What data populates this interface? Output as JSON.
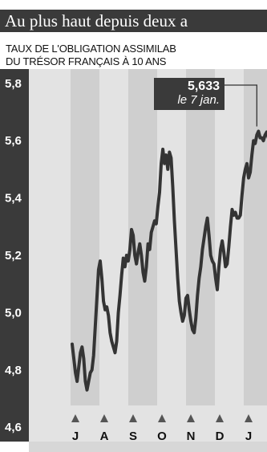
{
  "header": {
    "title": "Au plus haut depuis deux a",
    "subtitle_line1": "TAUX DE L'OBLIGATION ASSIMILAB",
    "subtitle_line2": "DU TRÉSOR FRANÇAIS À 10 ANS"
  },
  "annotation": {
    "value": "5,633",
    "date": "le 7 jan."
  },
  "colors": {
    "dark": "#3a3a3a",
    "light_band": "#e3e3e3",
    "dark_band": "#cfcfcf",
    "line": "#343434"
  },
  "chart_data": {
    "type": "line",
    "title": "Au plus haut depuis deux a",
    "subtitle": "TAUX DE L'OBLIGATION ASSIMILAB / DU TRÉSOR FRANÇAIS À 10 ANS",
    "xlabel": "",
    "ylabel": "",
    "ylim": [
      4.55,
      5.85
    ],
    "y_ticks": [
      "5,8",
      "5,6",
      "5,4",
      "5,2",
      "5,0",
      "4,8",
      "4,6"
    ],
    "y_tick_values": [
      5.8,
      5.6,
      5.4,
      5.2,
      5.0,
      4.8,
      4.6
    ],
    "x_ticks": [
      "J",
      "A",
      "S",
      "O",
      "N",
      "D",
      "J"
    ],
    "bands": [
      "J",
      "A",
      "S",
      "O",
      "N",
      "D",
      "J"
    ],
    "x": [
      0,
      2,
      4,
      6,
      8,
      10,
      12,
      14,
      16,
      18,
      20,
      22,
      24,
      26,
      28,
      30,
      32,
      34,
      36,
      38,
      40,
      42,
      44,
      46,
      48,
      50,
      52,
      54,
      56,
      58,
      60,
      62,
      64,
      66,
      68,
      70,
      72,
      74,
      76,
      78,
      80,
      82,
      84,
      86,
      88,
      90,
      92,
      94,
      96,
      98,
      100,
      102,
      104,
      106,
      108,
      110,
      112,
      114,
      116,
      118,
      120,
      122,
      124,
      126,
      128,
      130,
      132,
      134,
      136,
      138,
      140,
      142,
      144,
      146,
      148,
      150,
      152,
      154,
      156,
      158,
      160,
      162,
      164,
      166,
      168,
      170,
      172,
      174,
      176,
      178,
      180,
      182,
      184,
      186,
      188,
      190,
      192,
      194,
      196,
      198,
      200,
      202,
      204,
      206,
      208,
      210,
      212,
      214,
      216,
      218,
      220,
      222,
      224,
      226,
      228,
      230,
      232,
      234,
      236,
      238,
      240,
      242,
      244,
      246,
      248
    ],
    "values": [
      4.89,
      4.84,
      4.79,
      4.76,
      4.81,
      4.86,
      4.88,
      4.84,
      4.76,
      4.73,
      4.76,
      4.79,
      4.8,
      4.85,
      4.95,
      5.05,
      5.15,
      5.18,
      5.12,
      5.04,
      5.01,
      5.02,
      4.99,
      4.93,
      4.9,
      4.88,
      4.86,
      4.9,
      5.0,
      5.06,
      5.13,
      5.19,
      5.16,
      5.2,
      5.18,
      5.22,
      5.29,
      5.27,
      5.2,
      5.17,
      5.21,
      5.24,
      5.2,
      5.14,
      5.11,
      5.16,
      5.24,
      5.22,
      5.28,
      5.3,
      5.32,
      5.31,
      5.37,
      5.42,
      5.52,
      5.57,
      5.52,
      5.55,
      5.5,
      5.56,
      5.54,
      5.44,
      5.32,
      5.22,
      5.12,
      5.04,
      5.0,
      4.97,
      4.99,
      5.05,
      5.06,
      5.01,
      4.97,
      4.94,
      4.93,
      4.98,
      5.06,
      5.12,
      5.16,
      5.22,
      5.26,
      5.3,
      5.33,
      5.27,
      5.2,
      5.18,
      5.17,
      5.12,
      5.08,
      5.16,
      5.22,
      5.25,
      5.21,
      5.16,
      5.17,
      5.23,
      5.3,
      5.36,
      5.34,
      5.35,
      5.33,
      5.33,
      5.34,
      5.41,
      5.47,
      5.5,
      5.52,
      5.47,
      5.49,
      5.55,
      5.6,
      5.59,
      5.62,
      5.633,
      5.61,
      5.61,
      5.6,
      5.62,
      5.63,
      5.61,
      5.6,
      5.58,
      5.61,
      5.62,
      5.63
    ],
    "annotations": [
      {
        "text": "5,633",
        "subtext": "le 7 jan."
      }
    ],
    "grid": false
  }
}
